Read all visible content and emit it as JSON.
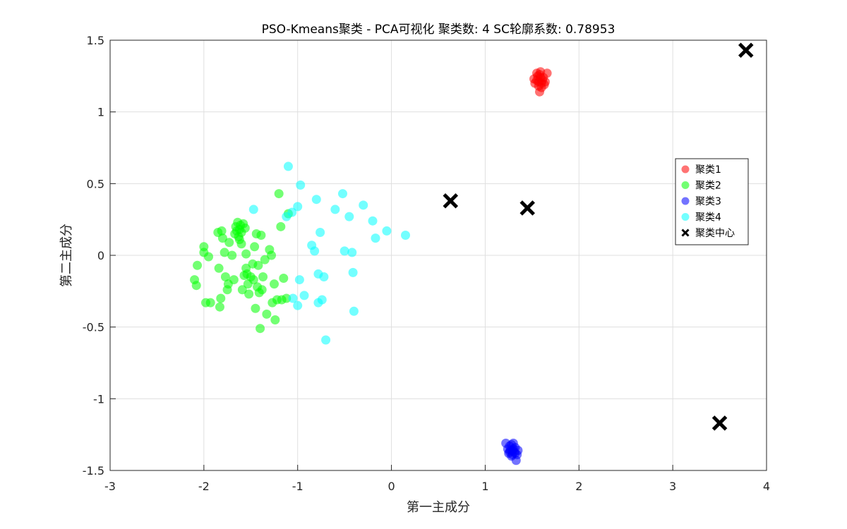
{
  "chart_data": {
    "type": "scatter",
    "title": "PSO-Kmeans聚类 - PCA可视化  聚类数: 4  SC轮廓系数: 0.78953",
    "xlabel": "第一主成分",
    "ylabel": "第二主成分",
    "xlim": [
      -3,
      4
    ],
    "ylim": [
      -1.5,
      1.5
    ],
    "xticks": [
      -3,
      -2,
      -1,
      0,
      1,
      2,
      3,
      4
    ],
    "yticks": [
      -1.5,
      -1,
      -0.5,
      0,
      0.5,
      1,
      1.5
    ],
    "xtick_labels": [
      "-3",
      "-2",
      "-1",
      "0",
      "1",
      "2",
      "3",
      "4"
    ],
    "ytick_labels": [
      "-1.5",
      "-1",
      "-0.5",
      "0",
      "0.5",
      "1",
      "1.5"
    ],
    "grid": true,
    "legend_position": "right",
    "series": [
      {
        "name": "聚类1",
        "color": "#ff0000",
        "marker": "circle",
        "points": [
          [
            1.55,
            1.22
          ],
          [
            1.58,
            1.26
          ],
          [
            1.6,
            1.2
          ],
          [
            1.57,
            1.18
          ],
          [
            1.62,
            1.24
          ],
          [
            1.59,
            1.28
          ],
          [
            1.53,
            1.2
          ],
          [
            1.64,
            1.21
          ],
          [
            1.56,
            1.25
          ],
          [
            1.6,
            1.17
          ],
          [
            1.58,
            1.14
          ],
          [
            1.52,
            1.23
          ],
          [
            1.66,
            1.27
          ],
          [
            1.61,
            1.22
          ],
          [
            1.55,
            1.27
          ],
          [
            1.63,
            1.19
          ],
          [
            1.57,
            1.21
          ],
          [
            1.59,
            1.24
          ]
        ]
      },
      {
        "name": "聚类2",
        "color": "#00ff00",
        "marker": "circle",
        "points": [
          [
            -2.1,
            -0.17
          ],
          [
            -2.08,
            -0.21
          ],
          [
            -2.07,
            -0.07
          ],
          [
            -2.0,
            0.06
          ],
          [
            -2.0,
            0.02
          ],
          [
            -1.98,
            -0.33
          ],
          [
            -1.95,
            -0.01
          ],
          [
            -1.93,
            -0.33
          ],
          [
            -1.85,
            0.16
          ],
          [
            -1.84,
            -0.09
          ],
          [
            -1.83,
            -0.36
          ],
          [
            -1.82,
            -0.3
          ],
          [
            -1.81,
            0.17
          ],
          [
            -1.8,
            0.12
          ],
          [
            -1.78,
            0.02
          ],
          [
            -1.77,
            -0.15
          ],
          [
            -1.75,
            -0.24
          ],
          [
            -1.74,
            -0.2
          ],
          [
            -1.73,
            0.09
          ],
          [
            -1.7,
            0.0
          ],
          [
            -1.68,
            -0.17
          ],
          [
            -1.67,
            0.15
          ],
          [
            -1.66,
            0.2
          ],
          [
            -1.65,
            0.17
          ],
          [
            -1.64,
            0.23
          ],
          [
            -1.63,
            0.13
          ],
          [
            -1.62,
            0.18
          ],
          [
            -1.62,
            0.11
          ],
          [
            -1.61,
            0.21
          ],
          [
            -1.6,
            0.16
          ],
          [
            -1.6,
            0.08
          ],
          [
            -1.59,
            -0.24
          ],
          [
            -1.58,
            0.22
          ],
          [
            -1.57,
            -0.14
          ],
          [
            -1.56,
            0.19
          ],
          [
            -1.55,
            -0.09
          ],
          [
            -1.55,
            0.01
          ],
          [
            -1.54,
            -0.13
          ],
          [
            -1.53,
            -0.2
          ],
          [
            -1.52,
            -0.27
          ],
          [
            -1.5,
            -0.15
          ],
          [
            -1.48,
            -0.06
          ],
          [
            -1.47,
            -0.17
          ],
          [
            -1.46,
            0.06
          ],
          [
            -1.45,
            -0.37
          ],
          [
            -1.44,
            0.15
          ],
          [
            -1.43,
            -0.22
          ],
          [
            -1.42,
            -0.07
          ],
          [
            -1.41,
            -0.26
          ],
          [
            -1.4,
            -0.51
          ],
          [
            -1.39,
            0.14
          ],
          [
            -1.38,
            -0.24
          ],
          [
            -1.37,
            -0.15
          ],
          [
            -1.35,
            -0.03
          ],
          [
            -1.33,
            -0.41
          ],
          [
            -1.3,
            0.04
          ],
          [
            -1.28,
            0.0
          ],
          [
            -1.27,
            -0.33
          ],
          [
            -1.25,
            -0.2
          ],
          [
            -1.24,
            -0.45
          ],
          [
            -1.22,
            -0.31
          ],
          [
            -1.2,
            0.43
          ],
          [
            -1.18,
            0.2
          ],
          [
            -1.17,
            -0.31
          ],
          [
            -1.15,
            -0.16
          ],
          [
            -1.12,
            -0.3
          ],
          [
            -1.1,
            0.29
          ]
        ]
      },
      {
        "name": "聚类3",
        "color": "#0000ff",
        "marker": "circle",
        "points": [
          [
            1.22,
            -1.31
          ],
          [
            1.24,
            -1.35
          ],
          [
            1.25,
            -1.38
          ],
          [
            1.26,
            -1.33
          ],
          [
            1.27,
            -1.36
          ],
          [
            1.28,
            -1.32
          ],
          [
            1.29,
            -1.39
          ],
          [
            1.3,
            -1.35
          ],
          [
            1.31,
            -1.37
          ],
          [
            1.32,
            -1.34
          ],
          [
            1.33,
            -1.43
          ],
          [
            1.34,
            -1.39
          ],
          [
            1.35,
            -1.36
          ],
          [
            1.28,
            -1.4
          ],
          [
            1.3,
            -1.31
          ],
          [
            1.26,
            -1.37
          ],
          [
            1.32,
            -1.38
          ],
          [
            1.29,
            -1.36
          ]
        ]
      },
      {
        "name": "聚类4",
        "color": "#00ffff",
        "marker": "circle",
        "points": [
          [
            -1.47,
            0.32
          ],
          [
            -1.1,
            0.62
          ],
          [
            -1.12,
            0.27
          ],
          [
            -1.06,
            0.3
          ],
          [
            -1.0,
            0.34
          ],
          [
            -0.97,
            0.49
          ],
          [
            -0.8,
            0.39
          ],
          [
            -0.85,
            0.07
          ],
          [
            -0.82,
            0.03
          ],
          [
            -0.78,
            -0.13
          ],
          [
            -0.76,
            0.16
          ],
          [
            -0.74,
            -0.31
          ],
          [
            -0.72,
            -0.15
          ],
          [
            -0.7,
            -0.59
          ],
          [
            -0.6,
            0.32
          ],
          [
            -0.52,
            0.43
          ],
          [
            -0.5,
            0.03
          ],
          [
            -0.45,
            0.27
          ],
          [
            -0.42,
            0.02
          ],
          [
            -0.41,
            -0.12
          ],
          [
            -0.4,
            -0.39
          ],
          [
            -0.3,
            0.35
          ],
          [
            -0.2,
            0.24
          ],
          [
            -0.17,
            0.12
          ],
          [
            -0.05,
            0.17
          ],
          [
            0.15,
            0.14
          ],
          [
            -0.98,
            -0.17
          ],
          [
            -1.0,
            -0.35
          ],
          [
            -0.93,
            -0.28
          ],
          [
            -1.05,
            -0.3
          ],
          [
            -0.78,
            -0.33
          ]
        ]
      },
      {
        "name": "聚类中心",
        "color": "#000000",
        "marker": "x",
        "points": [
          [
            0.63,
            0.38
          ],
          [
            1.45,
            0.33
          ],
          [
            3.5,
            -1.17
          ],
          [
            3.78,
            1.43
          ]
        ]
      }
    ]
  }
}
